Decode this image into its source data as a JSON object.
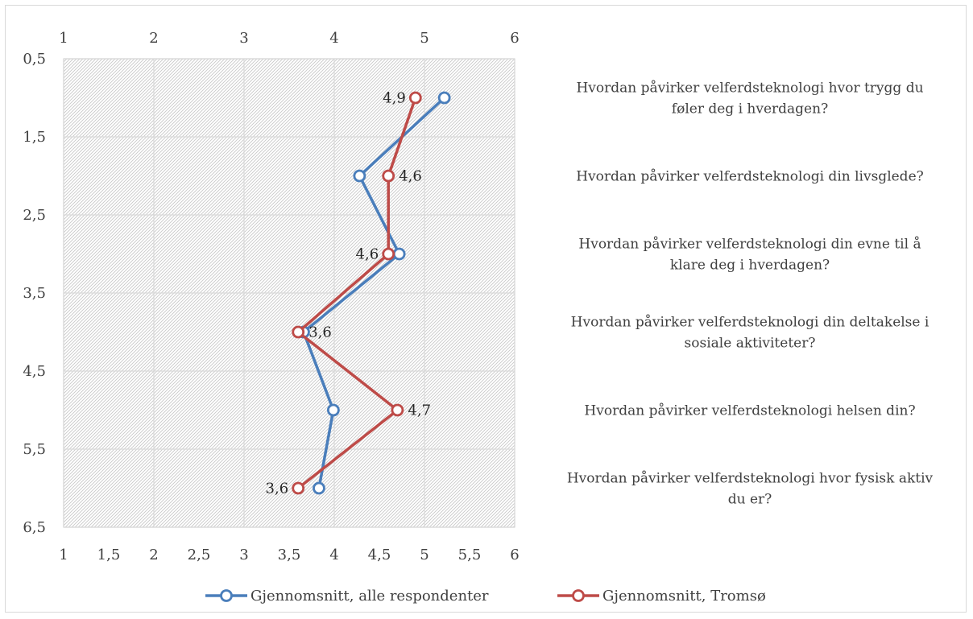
{
  "chart_data": {
    "type": "line",
    "orientation": "vertical-categories",
    "x_ticks_top": [
      "1",
      "2",
      "3",
      "4",
      "5",
      "6"
    ],
    "x_ticks_bottom": [
      "1",
      "1,5",
      "2",
      "2,5",
      "3",
      "3,5",
      "4",
      "4,5",
      "5",
      "5,5",
      "6"
    ],
    "y_ticks": [
      "0,5",
      "1,5",
      "2,5",
      "3,5",
      "4,5",
      "5,5",
      "6,5"
    ],
    "xlim": [
      1,
      6
    ],
    "ylim": [
      0.5,
      6.5
    ],
    "y_reversed": true,
    "grid": true,
    "legend_position": "bottom",
    "categories": [
      [
        "Hvordan påvirker velferdsteknologi hvor trygg du",
        "føler deg i hverdagen?"
      ],
      [
        "Hvordan påvirker velferdsteknologi din livsglede?"
      ],
      [
        "Hvordan påvirker velferdsteknologi din evne til å",
        "klare deg i hverdagen?"
      ],
      [
        "Hvordan påvirker velferdsteknologi din deltakelse i",
        "sosiale aktiviteter?"
      ],
      [
        "Hvordan påvirker velferdsteknologi helsen din?"
      ],
      [
        "Hvordan påvirker velferdsteknologi hvor fysisk aktiv",
        "du er?"
      ]
    ],
    "series": [
      {
        "name": "Gjennomsnitt, alle respondenter",
        "color": "#4a7ebb",
        "x": [
          5.22,
          4.28,
          4.72,
          3.66,
          3.99,
          3.83
        ],
        "y": [
          1,
          2,
          3,
          4,
          5,
          6
        ]
      },
      {
        "name": "Gjennomsnitt, Tromsø",
        "color": "#be4b48",
        "x": [
          4.9,
          4.6,
          4.6,
          3.6,
          4.7,
          3.6
        ],
        "y": [
          1,
          2,
          3,
          4,
          5,
          6
        ],
        "data_labels": [
          "4,9",
          "4,6",
          "4,6",
          "3,6",
          "4,7",
          "3,6"
        ],
        "label_sides": [
          "left",
          "right",
          "left",
          "right",
          "right",
          "left"
        ]
      }
    ]
  }
}
